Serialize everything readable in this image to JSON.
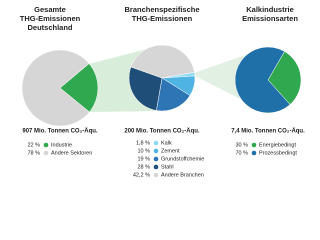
{
  "chart_data": [
    {
      "type": "pie",
      "title": [
        "Gesamte",
        "THG-Emissionen",
        "Deutschland"
      ],
      "total": "907 Mio. Tonnen CO₂-Äqu.",
      "categories": [
        "Industrie",
        "Andere Sektoren"
      ],
      "values": [
        22,
        78
      ],
      "value_labels": [
        "22 %",
        "78 %"
      ],
      "colors": [
        "#2fa84f",
        "#d6d6d6"
      ]
    },
    {
      "type": "pie",
      "title": [
        "Branchenspezifische",
        "THG-Emissionen"
      ],
      "total": "200 Mio. Tonnen CO₂-Äqu.",
      "categories": [
        "Kalk",
        "Zement",
        "Grundstoffchemie",
        "Stahl",
        "Andere Branchen"
      ],
      "values": [
        1.8,
        10,
        19,
        28,
        42.2
      ],
      "value_labels": [
        "1,8 %",
        "10 %",
        "19 %",
        "28 %",
        "42,2 %"
      ],
      "colors": [
        "#8fdcf2",
        "#4fb3e3",
        "#2e75b6",
        "#1f4e79",
        "#d6d6d6"
      ]
    },
    {
      "type": "pie",
      "title": [
        "Kalkindustrie",
        "Emissionsarten"
      ],
      "total": "7,4 Mio. Tonnen CO₂-Äqu.",
      "categories": [
        "Energiebedingt",
        "Prozessbedingt"
      ],
      "values": [
        30,
        70
      ],
      "value_labels": [
        "30 %",
        "70 %"
      ],
      "colors": [
        "#2fa84f",
        "#1f6fa8"
      ]
    }
  ]
}
